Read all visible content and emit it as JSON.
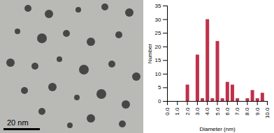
{
  "image": {
    "scale_bar_label": "20 nm"
  },
  "chart_data": {
    "type": "bar",
    "x": [
      2.0,
      3.0,
      3.5,
      4.0,
      4.5,
      5.0,
      5.5,
      6.0,
      6.5,
      7.0,
      8.0,
      8.5,
      9.0,
      9.5
    ],
    "values": [
      6,
      17,
      1,
      30,
      1,
      22,
      1,
      7,
      6,
      1,
      1,
      4,
      1,
      3
    ],
    "color": "#c0304a",
    "x_label": "Diameter (nm)",
    "y_label": "Number",
    "xlim": [
      0,
      10
    ],
    "xticks": [
      {
        "value": 0,
        "label": "0.0"
      },
      {
        "value": 1,
        "label": "1.0"
      },
      {
        "value": 2,
        "label": "2.0"
      },
      {
        "value": 3,
        "label": "3.0"
      },
      {
        "value": 4,
        "label": "4.0"
      },
      {
        "value": 5,
        "label": "5.0"
      },
      {
        "value": 6,
        "label": "6.0"
      },
      {
        "value": 7,
        "label": "7.0"
      },
      {
        "value": 8,
        "label": "8.0"
      },
      {
        "value": 9,
        "label": "9.0"
      },
      {
        "value": 10,
        "label": "10.0"
      }
    ],
    "ylim": [
      0,
      35
    ],
    "yticks": [
      0,
      5,
      10,
      15,
      20,
      25,
      30,
      35
    ],
    "grid": false
  }
}
